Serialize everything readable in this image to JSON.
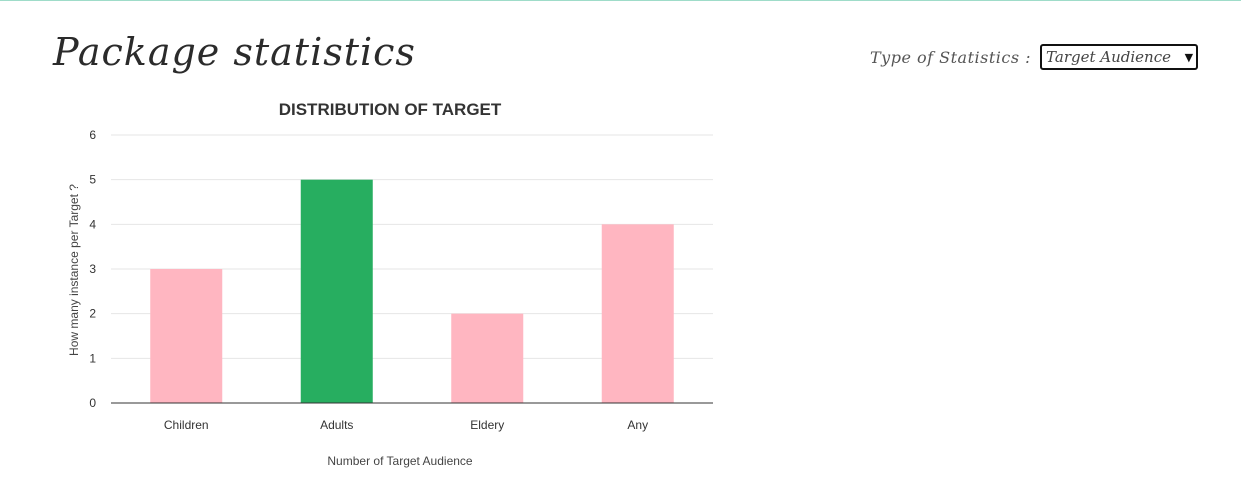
{
  "header": {
    "page_title": "Package statistics",
    "stat_type_label": "Type of Statistics :",
    "stat_type_selected": "Target Audience"
  },
  "chart_data": {
    "type": "bar",
    "title": "DISTRIBUTION OF TARGET",
    "categories": [
      "Children",
      "Adults",
      "Eldery",
      "Any"
    ],
    "values": [
      3,
      5,
      2,
      4
    ],
    "colors": [
      "#ffb6c1",
      "#27ae60",
      "#ffb6c1",
      "#ffb6c1"
    ],
    "xlabel": "Number of Target Audience",
    "ylabel": "How many instance per Target ?",
    "ylim": [
      0,
      6
    ],
    "yticks": [
      0,
      1,
      2,
      3,
      4,
      5,
      6
    ],
    "grid": true,
    "legend": "none"
  }
}
